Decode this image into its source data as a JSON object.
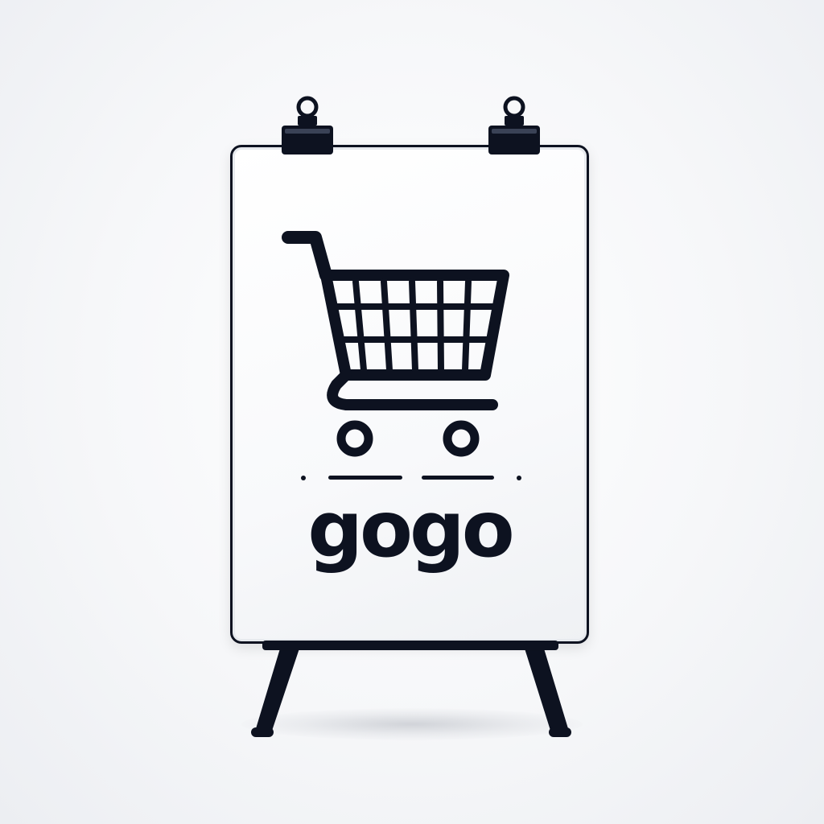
{
  "sign": {
    "brand_text": "gogo",
    "icon": "shopping-cart-icon"
  },
  "colors": {
    "ink": "#0d1220",
    "board": "#ffffff",
    "background": "#f4f5f7"
  }
}
